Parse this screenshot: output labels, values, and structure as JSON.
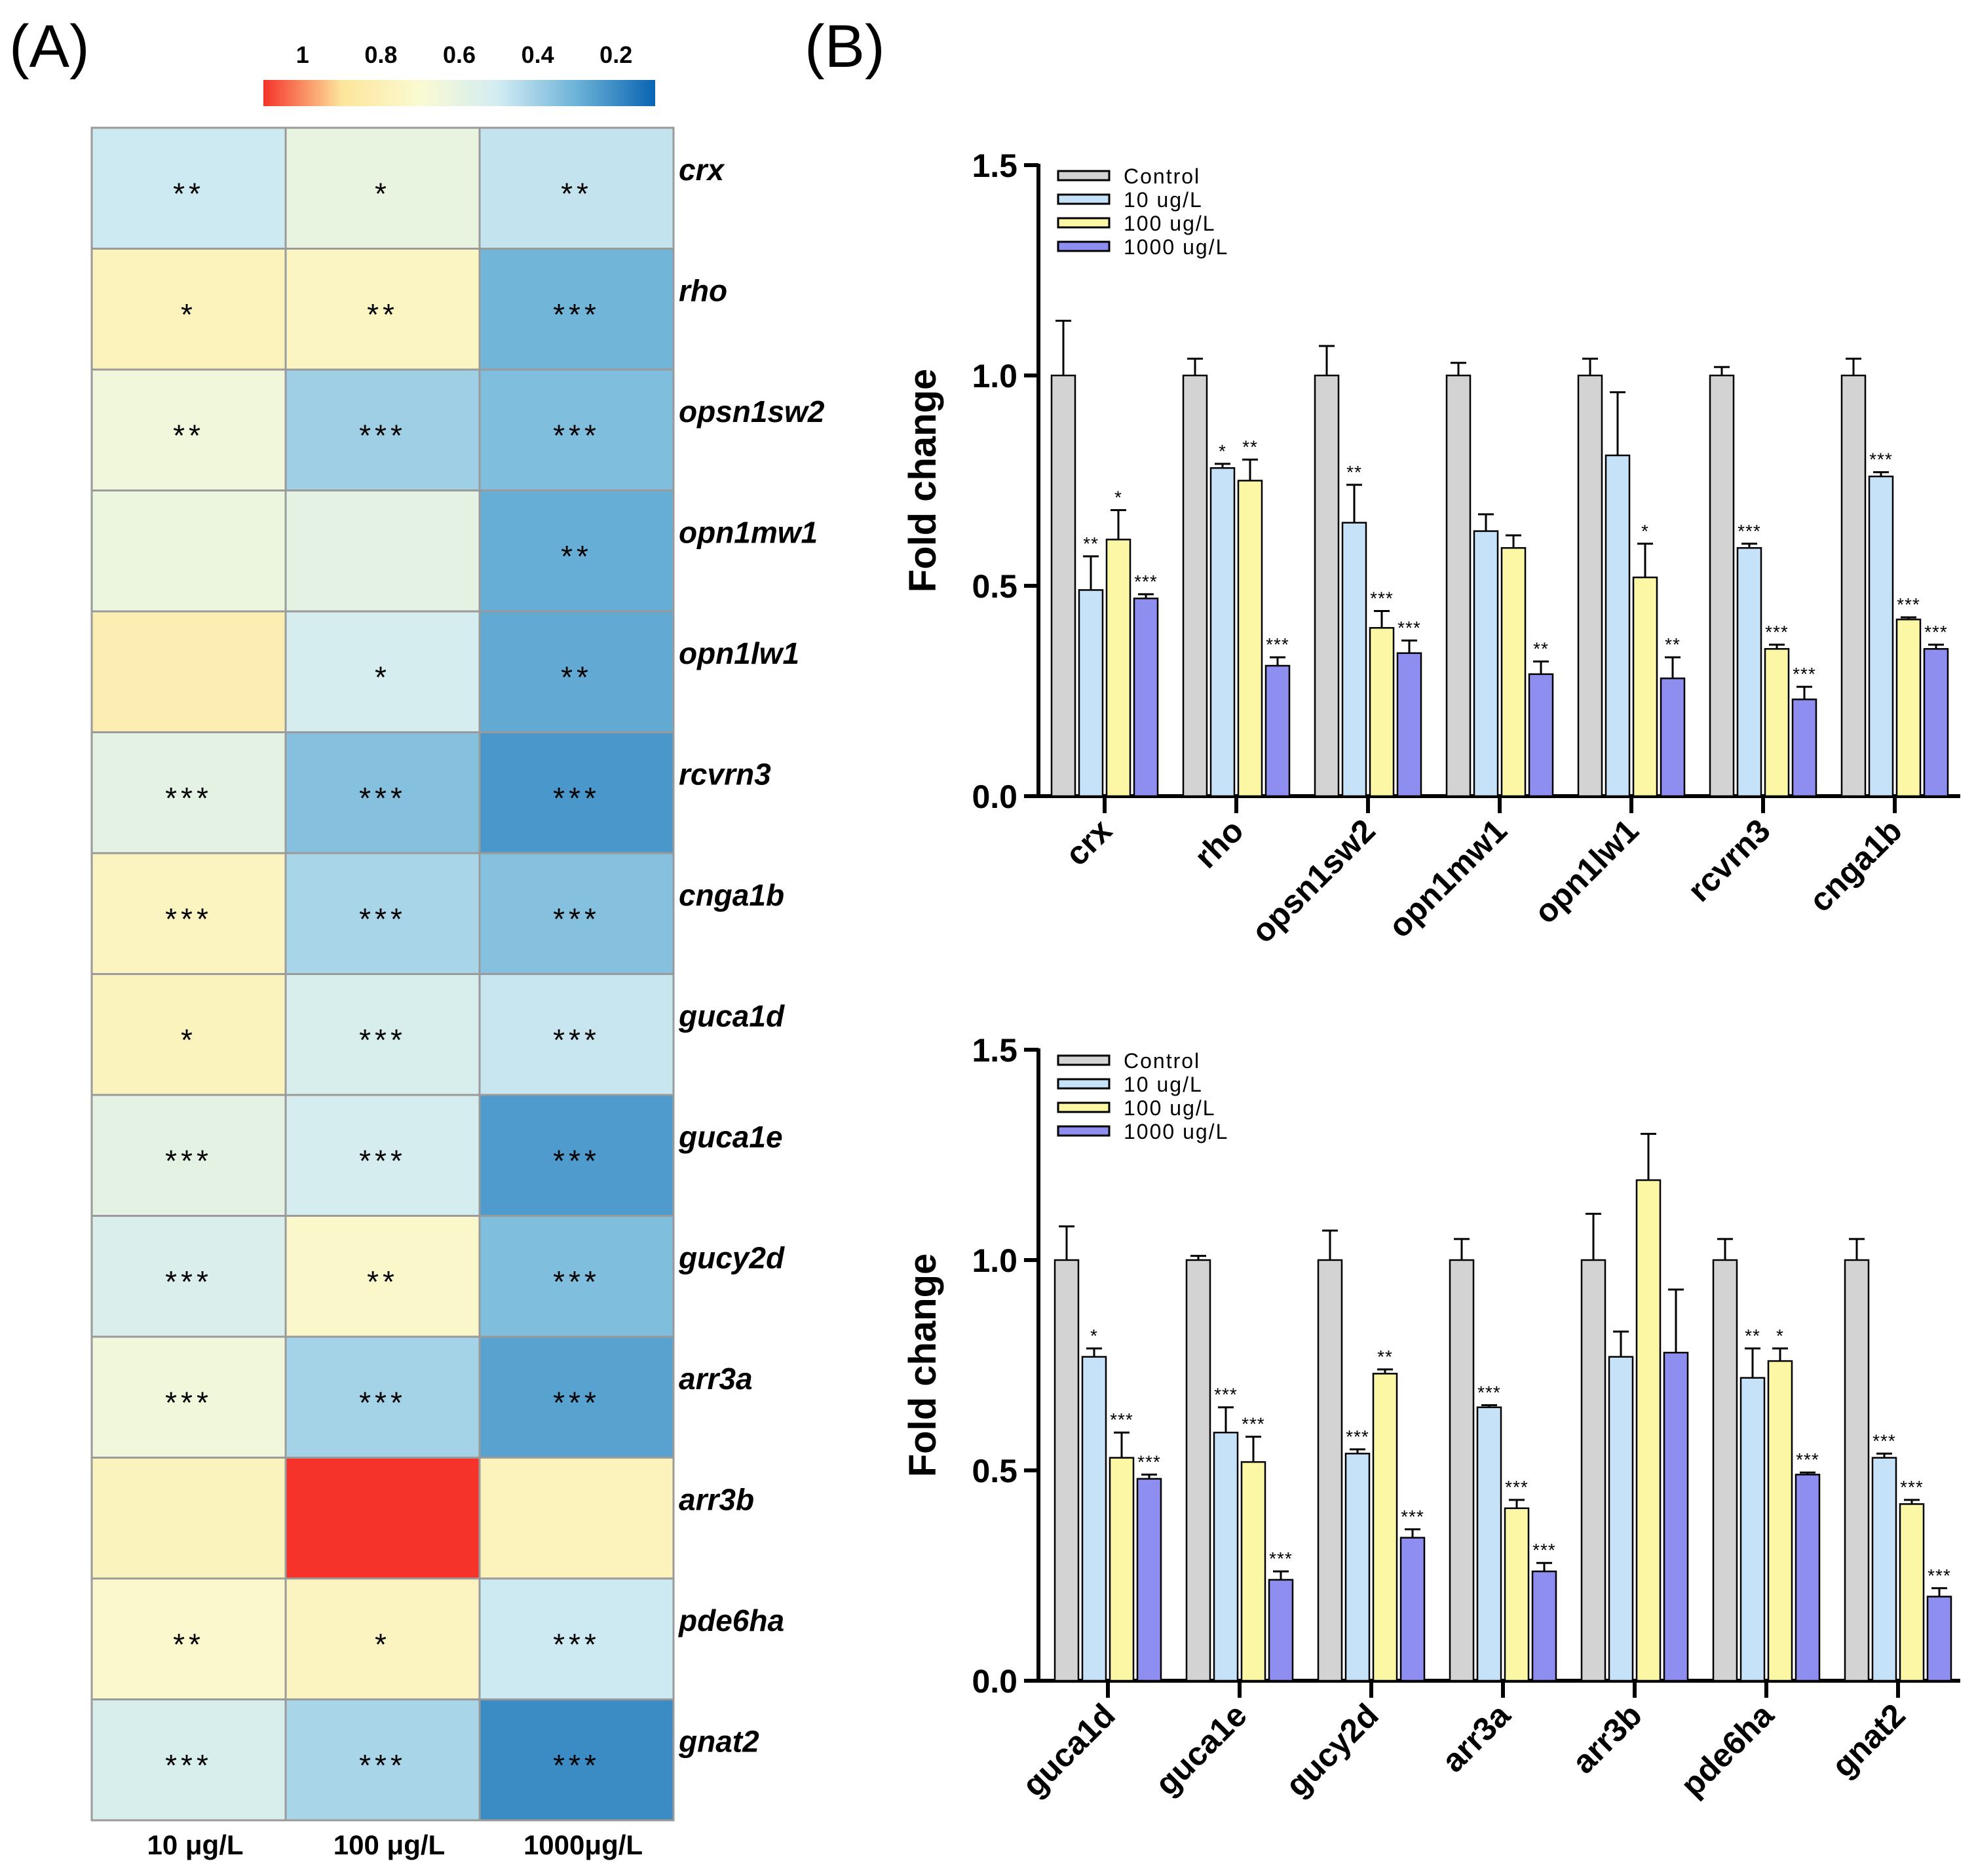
{
  "panel_a_label": "(A)",
  "panel_b_label": "(B)",
  "chart_data": [
    {
      "type": "heatmap",
      "title": "",
      "rows": [
        "crx",
        "rho",
        "opsn1sw2",
        "opn1mw1",
        "opn1lw1",
        "rcvrn3",
        "cnga1b",
        "guca1d",
        "guca1e",
        "gucy2d",
        "arr3a",
        "arr3b",
        "pde6ha",
        "gnat2"
      ],
      "columns": [
        "10 μg/L",
        "100 μg/L",
        "1000μg/L"
      ],
      "values": [
        [
          0.49,
          0.61,
          0.47
        ],
        [
          0.78,
          0.75,
          0.31
        ],
        [
          0.65,
          0.4,
          0.34
        ],
        [
          0.63,
          0.59,
          0.29
        ],
        [
          0.81,
          0.52,
          0.28
        ],
        [
          0.59,
          0.35,
          0.23
        ],
        [
          0.76,
          0.42,
          0.35
        ],
        [
          0.77,
          0.53,
          0.48
        ],
        [
          0.59,
          0.52,
          0.24
        ],
        [
          0.54,
          0.73,
          0.34
        ],
        [
          0.65,
          0.41,
          0.26
        ],
        [
          0.77,
          1.19,
          0.78
        ],
        [
          0.72,
          0.76,
          0.49
        ],
        [
          0.53,
          0.42,
          0.2
        ]
      ],
      "significance": [
        [
          "**",
          "*",
          "**"
        ],
        [
          "*",
          "**",
          "***"
        ],
        [
          "**",
          "***",
          "***"
        ],
        [
          "",
          "",
          "**"
        ],
        [
          "",
          "*",
          "**"
        ],
        [
          "***",
          "***",
          "***"
        ],
        [
          "***",
          "***",
          "***"
        ],
        [
          "*",
          "***",
          "***"
        ],
        [
          "***",
          "***",
          "***"
        ],
        [
          "***",
          "**",
          "***"
        ],
        [
          "***",
          "***",
          "***"
        ],
        [
          "",
          "",
          ""
        ],
        [
          "**",
          "*",
          "***"
        ],
        [
          "***",
          "***",
          "***"
        ]
      ],
      "colorbar": {
        "tick_labels": [
          "1",
          "0.8",
          "0.6",
          "0.4",
          "0.2"
        ],
        "tick_values": [
          1.0,
          0.8,
          0.6,
          0.4,
          0.2
        ],
        "range": [
          0.1,
          1.1
        ],
        "colors": [
          "#f5332a",
          "#fde59a",
          "#fafad2",
          "#d2ecf2",
          "#6cb2d8",
          "#0a64b2"
        ]
      }
    },
    {
      "type": "bar",
      "categories": [
        "crx",
        "rho",
        "opsn1sw2",
        "opn1mw1",
        "opn1lw1",
        "rcvrn3",
        "cnga1b"
      ],
      "ylabel": "Fold change",
      "ylim": [
        0,
        1.5
      ],
      "yticks": [
        "0.0",
        "0.5",
        "1.0",
        "1.5"
      ],
      "legend": [
        "Control",
        "10 ug/L",
        "100 ug/L",
        "1000 ug/L"
      ],
      "series": [
        {
          "name": "Control",
          "color": "#d3d3d3",
          "values": [
            1.0,
            1.0,
            1.0,
            1.0,
            1.0,
            1.0,
            1.0
          ],
          "errors": [
            0.13,
            0.04,
            0.07,
            0.03,
            0.04,
            0.02,
            0.04
          ],
          "stars": [
            "",
            "",
            "",
            "",
            "",
            "",
            ""
          ]
        },
        {
          "name": "10 ug/L",
          "color": "#c6e2f8",
          "values": [
            0.49,
            0.78,
            0.65,
            0.63,
            0.81,
            0.59,
            0.76
          ],
          "errors": [
            0.08,
            0.01,
            0.09,
            0.04,
            0.15,
            0.01,
            0.01
          ],
          "stars": [
            "**",
            "*",
            "**",
            "",
            "",
            "***",
            "***"
          ]
        },
        {
          "name": "100 ug/L",
          "color": "#fbf7a4",
          "values": [
            0.61,
            0.75,
            0.4,
            0.59,
            0.52,
            0.35,
            0.42
          ],
          "errors": [
            0.07,
            0.05,
            0.04,
            0.03,
            0.08,
            0.01,
            0.005
          ],
          "stars": [
            "*",
            "**",
            "***",
            "",
            "*",
            "***",
            "***"
          ]
        },
        {
          "name": "1000 ug/L",
          "color": "#8e8ef0",
          "values": [
            0.47,
            0.31,
            0.34,
            0.29,
            0.28,
            0.23,
            0.35
          ],
          "errors": [
            0.01,
            0.02,
            0.03,
            0.03,
            0.05,
            0.03,
            0.01
          ],
          "stars": [
            "***",
            "***",
            "***",
            "**",
            "**",
            "***",
            "***"
          ]
        }
      ]
    },
    {
      "type": "bar",
      "categories": [
        "guca1d",
        "guca1e",
        "gucy2d",
        "arr3a",
        "arr3b",
        "pde6ha",
        "gnat2"
      ],
      "ylabel": "Fold change",
      "ylim": [
        0,
        1.5
      ],
      "yticks": [
        "0.0",
        "0.5",
        "1.0",
        "1.5"
      ],
      "legend": [
        "Control",
        "10 ug/L",
        "100 ug/L",
        "1000 ug/L"
      ],
      "series": [
        {
          "name": "Control",
          "color": "#d3d3d3",
          "values": [
            1.0,
            1.0,
            1.0,
            1.0,
            1.0,
            1.0,
            1.0
          ],
          "errors": [
            0.08,
            0.01,
            0.07,
            0.05,
            0.11,
            0.05,
            0.05
          ],
          "stars": [
            "",
            "",
            "",
            "",
            "",
            "",
            ""
          ]
        },
        {
          "name": "10 ug/L",
          "color": "#c6e2f8",
          "values": [
            0.77,
            0.59,
            0.54,
            0.65,
            0.77,
            0.72,
            0.53
          ],
          "errors": [
            0.02,
            0.06,
            0.01,
            0.005,
            0.06,
            0.07,
            0.01
          ],
          "stars": [
            "*",
            "***",
            "***",
            "***",
            "",
            "**",
            "***"
          ]
        },
        {
          "name": "100 ug/L",
          "color": "#fbf7a4",
          "values": [
            0.53,
            0.52,
            0.73,
            0.41,
            1.19,
            0.76,
            0.42
          ],
          "errors": [
            0.06,
            0.06,
            0.01,
            0.02,
            0.11,
            0.03,
            0.01
          ],
          "stars": [
            "***",
            "***",
            "**",
            "***",
            "",
            "*",
            "***"
          ]
        },
        {
          "name": "1000 ug/L",
          "color": "#8e8ef0",
          "values": [
            0.48,
            0.24,
            0.34,
            0.26,
            0.78,
            0.49,
            0.2
          ],
          "errors": [
            0.01,
            0.02,
            0.02,
            0.02,
            0.15,
            0.005,
            0.02
          ],
          "stars": [
            "***",
            "***",
            "***",
            "***",
            "",
            "***",
            "***"
          ]
        }
      ]
    }
  ]
}
